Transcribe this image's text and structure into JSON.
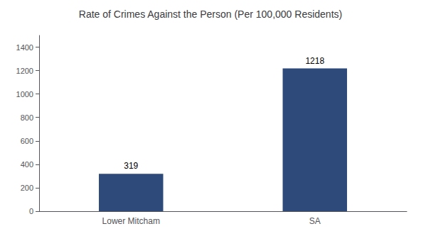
{
  "chart_data": {
    "type": "bar",
    "title": "Rate of Crimes Against the Person (Per 100,000 Residents)",
    "categories": [
      "Lower Mitcham",
      "SA"
    ],
    "values": [
      319,
      1218
    ],
    "color": "#2e4a7a",
    "ylim": [
      0,
      1500
    ],
    "yticks": [
      0,
      200,
      400,
      600,
      800,
      1000,
      1200,
      1400
    ],
    "grid": false,
    "data_labels": true
  }
}
